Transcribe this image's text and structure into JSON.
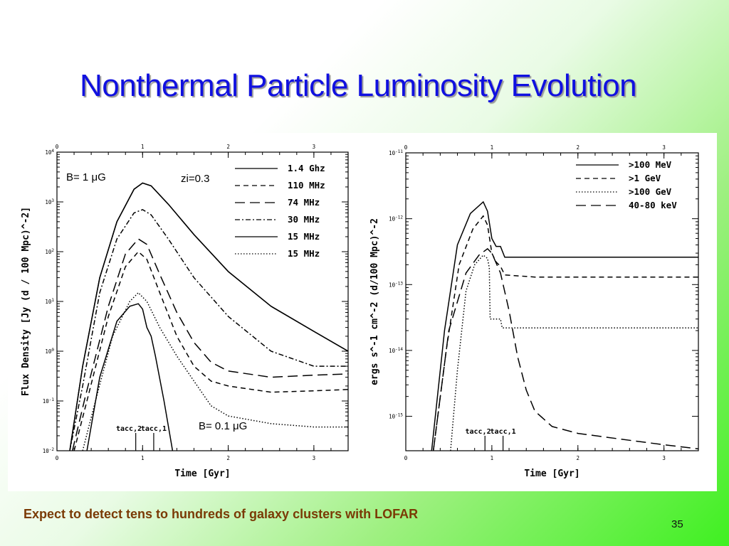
{
  "title": "Nonthermal Particle Luminosity Evolution",
  "caption": "Expect to detect tens to hundreds of galaxy clusters with LOFAR",
  "page_number": "35",
  "colors": {
    "title": "#1010e0",
    "caption": "#7a3a05",
    "background_gradient_end": "#3ff021"
  },
  "chart_data": [
    {
      "type": "line",
      "xlabel": "Time [Gyr]",
      "ylabel": "Flux Density [Jy (d / 100 Mpc)^-2]",
      "xlim": [
        0,
        3.4
      ],
      "ylim": [
        0.01,
        10000
      ],
      "yscale": "log",
      "x_ticks": [
        "0",
        "1",
        "2",
        "3"
      ],
      "y_ticks": [
        "10^-2",
        "10^-1",
        "10^0",
        "10^1",
        "10^2",
        "10^3",
        "10^4"
      ],
      "legend_position": "top-right",
      "annotations": {
        "b_high": "B= 1 μG",
        "z_initial": "zi=0.3",
        "b_low": "B= 0.1 μG",
        "t_acc_2": "tacc,2",
        "t_acc_1": "tacc,1"
      },
      "series": [
        {
          "name": "1.4 Ghz",
          "style": "solid",
          "points": [
            [
              0.15,
              0.01
            ],
            [
              0.3,
              0.5
            ],
            [
              0.5,
              30
            ],
            [
              0.7,
              400
            ],
            [
              0.9,
              1800
            ],
            [
              1.0,
              2400
            ],
            [
              1.1,
              2100
            ],
            [
              1.3,
              900
            ],
            [
              1.6,
              220
            ],
            [
              2.0,
              40
            ],
            [
              2.5,
              8
            ],
            [
              3.0,
              2.5
            ],
            [
              3.4,
              1.0
            ]
          ]
        },
        {
          "name": "110 MHz",
          "style": "dashed",
          "points": [
            [
              0.2,
              0.01
            ],
            [
              0.35,
              0.1
            ],
            [
              0.6,
              5
            ],
            [
              0.8,
              50
            ],
            [
              0.95,
              100
            ],
            [
              1.05,
              70
            ],
            [
              1.2,
              15
            ],
            [
              1.4,
              2
            ],
            [
              1.6,
              0.5
            ],
            [
              1.8,
              0.25
            ],
            [
              2.0,
              0.2
            ],
            [
              2.5,
              0.15
            ],
            [
              3.0,
              0.16
            ],
            [
              3.4,
              0.17
            ]
          ]
        },
        {
          "name": "74 MHz",
          "style": "long-dashed",
          "points": [
            [
              0.18,
              0.01
            ],
            [
              0.33,
              0.12
            ],
            [
              0.6,
              8
            ],
            [
              0.8,
              90
            ],
            [
              0.95,
              180
            ],
            [
              1.05,
              140
            ],
            [
              1.2,
              35
            ],
            [
              1.4,
              6
            ],
            [
              1.6,
              1.5
            ],
            [
              1.8,
              0.6
            ],
            [
              2.0,
              0.4
            ],
            [
              2.5,
              0.3
            ],
            [
              3.0,
              0.33
            ],
            [
              3.4,
              0.35
            ]
          ]
        },
        {
          "name": "30 MHz",
          "style": "dash-dot",
          "points": [
            [
              0.15,
              0.01
            ],
            [
              0.3,
              0.2
            ],
            [
              0.5,
              15
            ],
            [
              0.7,
              180
            ],
            [
              0.9,
              600
            ],
            [
              1.0,
              700
            ],
            [
              1.1,
              550
            ],
            [
              1.3,
              180
            ],
            [
              1.6,
              30
            ],
            [
              2.0,
              5
            ],
            [
              2.5,
              1.0
            ],
            [
              3.0,
              0.5
            ],
            [
              3.4,
              0.5
            ]
          ]
        },
        {
          "name": "15 MHz",
          "style": "solid",
          "points": [
            [
              0.15,
              0.01
            ],
            [
              0.3,
              0.5
            ],
            [
              0.5,
              30
            ],
            [
              0.7,
              400
            ],
            [
              0.9,
              1800
            ],
            [
              1.0,
              2400
            ],
            [
              1.1,
              2100
            ],
            [
              1.3,
              900
            ],
            [
              1.6,
              220
            ],
            [
              2.0,
              40
            ],
            [
              2.5,
              8
            ],
            [
              3.0,
              2.5
            ],
            [
              3.4,
              1.0
            ]
          ]
        },
        {
          "name": "15 MHz",
          "style": "dotted",
          "points": [
            [
              0.3,
              0.01
            ],
            [
              0.45,
              0.1
            ],
            [
              0.65,
              2
            ],
            [
              0.85,
              10
            ],
            [
              0.95,
              15
            ],
            [
              1.05,
              10
            ],
            [
              1.2,
              3
            ],
            [
              1.4,
              0.8
            ],
            [
              1.6,
              0.25
            ],
            [
              1.8,
              0.08
            ],
            [
              2.0,
              0.05
            ],
            [
              2.5,
              0.035
            ],
            [
              3.0,
              0.03
            ],
            [
              3.4,
              0.03
            ]
          ]
        },
        {
          "name": "",
          "style": "solid",
          "points": [
            [
              0.35,
              0.01
            ],
            [
              0.5,
              0.3
            ],
            [
              0.7,
              4
            ],
            [
              0.85,
              8
            ],
            [
              0.95,
              9
            ],
            [
              1.0,
              7
            ],
            [
              1.05,
              3
            ],
            [
              1.1,
              2
            ],
            [
              1.15,
              0.8
            ],
            [
              1.25,
              0.1
            ],
            [
              1.32,
              0.02
            ],
            [
              1.35,
              0.01
            ]
          ]
        }
      ]
    },
    {
      "type": "line",
      "xlabel": "Time [Gyr]",
      "ylabel": "ergs s^-1 cm^-2 (d/100 Mpc)^-2",
      "xlim": [
        0,
        3.4
      ],
      "ylim": [
        3e-16,
        1e-11
      ],
      "yscale": "log",
      "x_ticks": [
        "0",
        "1",
        "2",
        "3"
      ],
      "y_ticks": [
        "10^-15",
        "10^-14",
        "10^-13",
        "10^-12",
        "10^-11"
      ],
      "legend_position": "top-right",
      "annotations": {
        "t_acc_2": "tacc,2",
        "t_acc_1": "tacc,1"
      },
      "series": [
        {
          "name": ">100 MeV",
          "style": "solid",
          "points": [
            [
              0.3,
              3e-16
            ],
            [
              0.45,
              2e-14
            ],
            [
              0.6,
              4e-13
            ],
            [
              0.75,
              1.2e-12
            ],
            [
              0.9,
              1.8e-12
            ],
            [
              0.95,
              1.3e-12
            ],
            [
              1.0,
              5e-13
            ],
            [
              1.05,
              3.8e-13
            ],
            [
              1.1,
              3.8e-13
            ],
            [
              1.15,
              2.6e-13
            ],
            [
              1.5,
              2.6e-13
            ],
            [
              2.0,
              2.6e-13
            ],
            [
              3.4,
              2.6e-13
            ]
          ]
        },
        {
          "name": ">1 GeV",
          "style": "dashed",
          "points": [
            [
              0.32,
              3e-16
            ],
            [
              0.47,
              1e-14
            ],
            [
              0.62,
              2e-13
            ],
            [
              0.78,
              7e-13
            ],
            [
              0.9,
              1.1e-12
            ],
            [
              0.95,
              8e-13
            ],
            [
              1.0,
              3e-13
            ],
            [
              1.05,
              2.2e-13
            ],
            [
              1.1,
              1.9e-13
            ],
            [
              1.15,
              1.4e-13
            ],
            [
              1.5,
              1.3e-13
            ],
            [
              3.4,
              1.3e-13
            ]
          ]
        },
        {
          "name": ">100 GeV",
          "style": "dotted",
          "points": [
            [
              0.52,
              3e-16
            ],
            [
              0.6,
              5e-15
            ],
            [
              0.7,
              8e-14
            ],
            [
              0.8,
              2e-13
            ],
            [
              0.9,
              2.8e-13
            ],
            [
              0.95,
              2.5e-13
            ],
            [
              0.97,
              1.8e-13
            ],
            [
              0.98,
              3e-14
            ],
            [
              1.1,
              3e-14
            ],
            [
              1.12,
              2.2e-14
            ],
            [
              3.4,
              2.2e-14
            ]
          ]
        },
        {
          "name": "40-80 keV",
          "style": "long-dashed",
          "points": [
            [
              0.32,
              3e-16
            ],
            [
              0.5,
              2e-14
            ],
            [
              0.7,
              1.5e-13
            ],
            [
              0.85,
              2.8e-13
            ],
            [
              0.95,
              3.5e-13
            ],
            [
              1.0,
              3e-13
            ],
            [
              1.1,
              1.5e-13
            ],
            [
              1.2,
              4e-14
            ],
            [
              1.3,
              8e-15
            ],
            [
              1.4,
              2.5e-15
            ],
            [
              1.5,
              1.2e-15
            ],
            [
              1.7,
              7e-16
            ],
            [
              2.0,
              5.5e-16
            ],
            [
              2.5,
              4.5e-16
            ],
            [
              3.0,
              3.7e-16
            ],
            [
              3.4,
              3.2e-16
            ]
          ]
        }
      ]
    }
  ]
}
